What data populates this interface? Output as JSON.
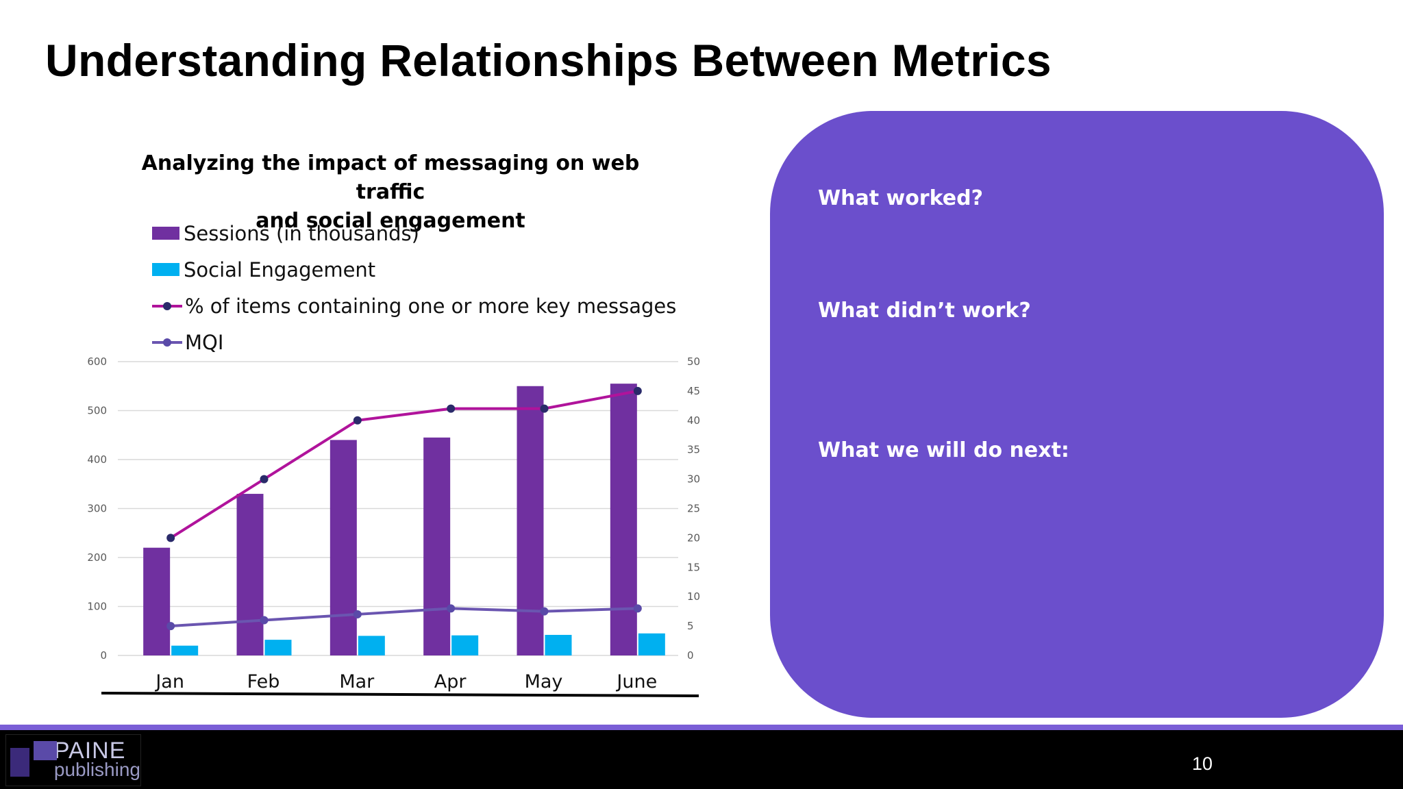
{
  "slide": {
    "title": "Understanding Relationships Between Metrics",
    "page_number": "10"
  },
  "logo": {
    "line1": "PAINE",
    "line2": "publishing"
  },
  "qa_panel": {
    "items": [
      "What worked?",
      "What didn’t work?",
      "What we will do next:"
    ],
    "color": "#6b4fcc"
  },
  "chart_data": {
    "type": "bar",
    "title": "Analyzing the impact of messaging on web traffic and social engagement",
    "title_lines": [
      "Analyzing the impact of messaging on web traffic",
      "and social engagement"
    ],
    "categories": [
      "Jan",
      "Feb",
      "Mar",
      "Apr",
      "May",
      "June"
    ],
    "y_left": {
      "min": 0,
      "max": 600,
      "ticks": [
        0,
        100,
        200,
        300,
        400,
        500,
        600
      ]
    },
    "y_right": {
      "min": 0,
      "max": 50,
      "ticks": [
        0,
        5,
        10,
        15,
        20,
        25,
        30,
        35,
        40,
        45,
        50
      ]
    },
    "grid": true,
    "legend_position": "top-left",
    "series": [
      {
        "name": "Sessions (in thousands)",
        "kind": "bar",
        "axis": "left",
        "color": "#7030a0",
        "values": [
          220,
          330,
          440,
          445,
          550,
          555
        ]
      },
      {
        "name": "Social Engagement",
        "kind": "bar",
        "axis": "left",
        "color": "#00b0f0",
        "values": [
          20,
          32,
          40,
          41,
          42,
          45
        ]
      },
      {
        "name": "% of items containing one or more key messages",
        "kind": "line",
        "axis": "right",
        "color": "#b0139b",
        "marker_color": "#2a2a6a",
        "values": [
          20,
          30,
          40,
          42,
          42,
          45
        ]
      },
      {
        "name": "MQI",
        "kind": "line",
        "axis": "right",
        "color": "#6a55b0",
        "marker_color": "#5a4aa8",
        "values": [
          5,
          6,
          7,
          8,
          7.5,
          8
        ]
      }
    ]
  }
}
